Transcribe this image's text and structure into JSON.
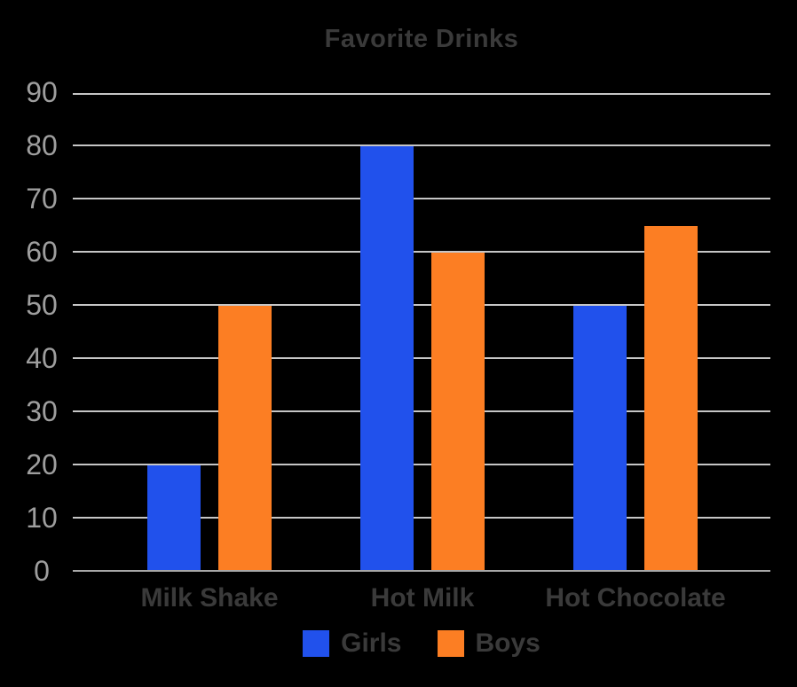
{
  "palette": {
    "background": "#000000",
    "girls_blue": "#2151ec",
    "boys_orange": "#fc7e23",
    "grid_color": "#c6c6c6",
    "axis_color": "#a8a8a8",
    "tick_label_color": "#9e9e9e",
    "text_color": "#3a3a3a"
  },
  "chart_data": {
    "type": "bar",
    "title": "Favorite Drinks",
    "categories": [
      "Milk Shake",
      "Hot Milk",
      "Hot Chocolate"
    ],
    "series": [
      {
        "name": "Girls",
        "color": "#2151ec",
        "values": [
          20,
          80,
          50
        ]
      },
      {
        "name": "Boys",
        "color": "#fc7e23",
        "values": [
          50,
          60,
          65
        ]
      }
    ],
    "xlabel": "",
    "ylabel": "",
    "ylim": [
      0,
      90
    ],
    "yticks": [
      0,
      10,
      20,
      30,
      40,
      50,
      60,
      70,
      80,
      90
    ],
    "grid": true,
    "legend_position": "bottom"
  }
}
